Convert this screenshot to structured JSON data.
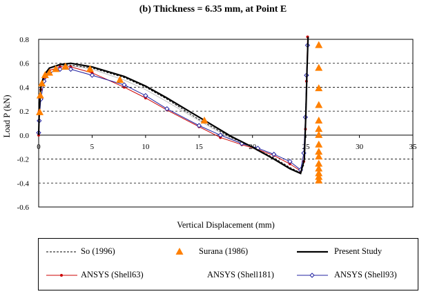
{
  "title": "(b) Thickness = 6.35 mm, at Point E",
  "chart_data": {
    "type": "line",
    "xlabel": "Vertical Displacement (mm)",
    "ylabel": "Load P (kN)",
    "xlim": [
      0,
      35
    ],
    "ylim": [
      -0.6,
      0.8
    ],
    "xticks": [
      "0",
      "5",
      "10",
      "15",
      "20",
      "25",
      "30",
      "35"
    ],
    "yticks": [
      "0.8",
      "0.6",
      "0.4",
      "0.2",
      "0.0",
      "-0.2",
      "-0.4",
      "-0.6"
    ],
    "grid": "horizontal dashed",
    "legend_position": "bottom",
    "series": [
      {
        "name": "So (1996)",
        "color": "#000000",
        "style": "dashed",
        "marker": "none",
        "x": [
          0,
          0.05,
          0.2,
          0.5,
          1,
          2,
          3,
          5,
          8,
          10,
          12,
          15,
          18,
          20,
          22,
          23.5,
          24.4,
          24.8,
          24.9,
          25.0,
          25.1,
          25.2
        ],
        "y": [
          0,
          0.2,
          0.4,
          0.5,
          0.56,
          0.585,
          0.585,
          0.56,
          0.48,
          0.4,
          0.3,
          0.13,
          -0.02,
          -0.1,
          -0.19,
          -0.27,
          -0.31,
          -0.25,
          0.0,
          0.3,
          0.6,
          0.82
        ]
      },
      {
        "name": "Surana (1986)",
        "color": "#ff8000",
        "style": "none",
        "marker": "triangle",
        "x": [
          0.1,
          0.15,
          0.3,
          0.6,
          1,
          1.6,
          2.5,
          4.8,
          7.6,
          15.5,
          26.2,
          26.2,
          26.2,
          26.2,
          26.2,
          26.2,
          26.2,
          26.2,
          26.2,
          26.2,
          26.2,
          26.2,
          26.2,
          26.2,
          26.2
        ],
        "y": [
          0.19,
          0.33,
          0.43,
          0.5,
          0.52,
          0.55,
          0.57,
          0.55,
          0.46,
          0.12,
          0.75,
          0.56,
          0.39,
          0.25,
          0.12,
          0.05,
          0.0,
          -0.08,
          -0.14,
          -0.18,
          -0.24,
          -0.28,
          -0.32,
          -0.35,
          -0.38
        ]
      },
      {
        "name": "Present Study",
        "color": "#000000",
        "style": "solid-thick",
        "marker": "none",
        "x": [
          0,
          0.05,
          0.2,
          0.5,
          1,
          2,
          3,
          5,
          8,
          10,
          12,
          15,
          18,
          20,
          22,
          23.5,
          24.5,
          24.85,
          25.0,
          25.1,
          25.2
        ],
        "y": [
          0,
          0.2,
          0.4,
          0.5,
          0.56,
          0.59,
          0.6,
          0.57,
          0.49,
          0.41,
          0.31,
          0.15,
          -0.01,
          -0.1,
          -0.2,
          -0.28,
          -0.32,
          -0.2,
          0.2,
          0.55,
          0.82
        ]
      },
      {
        "name": "ANSYS (Shell63)",
        "color": "#cc0000",
        "style": "solid",
        "marker": "dot",
        "x": [
          0,
          0.05,
          0.2,
          0.5,
          1,
          2,
          3,
          5,
          8,
          10,
          12,
          15,
          17,
          19,
          20.5,
          22,
          23.5,
          24.5,
          24.8,
          24.95,
          25.05,
          25.15
        ],
        "y": [
          0,
          0.2,
          0.38,
          0.48,
          0.54,
          0.57,
          0.57,
          0.52,
          0.4,
          0.31,
          0.21,
          0.07,
          -0.02,
          -0.08,
          -0.12,
          -0.17,
          -0.24,
          -0.3,
          -0.22,
          0.05,
          0.45,
          0.82
        ]
      },
      {
        "name": "ANSYS (Shell181)",
        "color": "#c0c0c0",
        "style": "solid",
        "marker": "none",
        "x": [
          0,
          0.05,
          0.2,
          0.5,
          1,
          2,
          3,
          5,
          8,
          10,
          12,
          15,
          18,
          20,
          22,
          23.5,
          24.5,
          24.85,
          25.0,
          25.1
        ],
        "y": [
          0,
          0.2,
          0.4,
          0.5,
          0.56,
          0.58,
          0.58,
          0.55,
          0.46,
          0.38,
          0.28,
          0.12,
          -0.03,
          -0.11,
          -0.2,
          -0.28,
          -0.31,
          -0.2,
          0.2,
          0.6
        ]
      },
      {
        "name": "ANSYS (Shell93)",
        "color": "#2020a0",
        "style": "solid",
        "marker": "diamond",
        "x": [
          0,
          0.05,
          0.2,
          0.5,
          1,
          2,
          3,
          5,
          8,
          10,
          12,
          15,
          17,
          19,
          20.5,
          22,
          23.5,
          24.5,
          24.8,
          24.95,
          25.05,
          25.15
        ],
        "y": [
          0.02,
          0.12,
          0.3,
          0.45,
          0.52,
          0.55,
          0.55,
          0.5,
          0.42,
          0.33,
          0.22,
          0.08,
          0.0,
          -0.07,
          -0.11,
          -0.16,
          -0.22,
          -0.29,
          -0.15,
          0.15,
          0.5,
          0.75
        ]
      }
    ]
  }
}
